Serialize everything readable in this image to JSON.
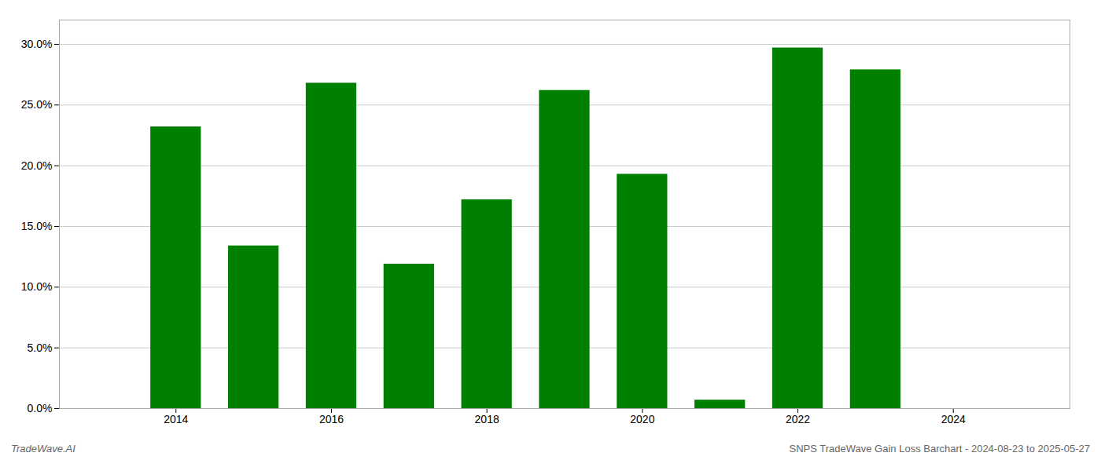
{
  "chart_data": {
    "type": "bar",
    "x": [
      2014,
      2015,
      2016,
      2017,
      2018,
      2019,
      2020,
      2021,
      2022,
      2023
    ],
    "values": [
      0.232,
      0.134,
      0.268,
      0.119,
      0.172,
      0.262,
      0.193,
      0.007,
      0.297,
      0.279
    ],
    "color": "#008000",
    "xlim": [
      2012.5,
      2025.5
    ],
    "xticks": [
      2014,
      2016,
      2018,
      2020,
      2022,
      2024
    ],
    "ylim": [
      0,
      0.32
    ],
    "yticks": [
      {
        "value": 0.0,
        "label": "0.0%"
      },
      {
        "value": 0.05,
        "label": "5.0%"
      },
      {
        "value": 0.1,
        "label": "10.0%"
      },
      {
        "value": 0.15,
        "label": "15.0%"
      },
      {
        "value": 0.2,
        "label": "20.0%"
      },
      {
        "value": 0.25,
        "label": "25.0%"
      },
      {
        "value": 0.3,
        "label": "30.0%"
      }
    ],
    "grid": "y",
    "annotations": [
      "TradeWave.AI",
      "SNPS TradeWave Gain Loss Barchart - 2024-08-23 to 2025-05-27"
    ]
  }
}
